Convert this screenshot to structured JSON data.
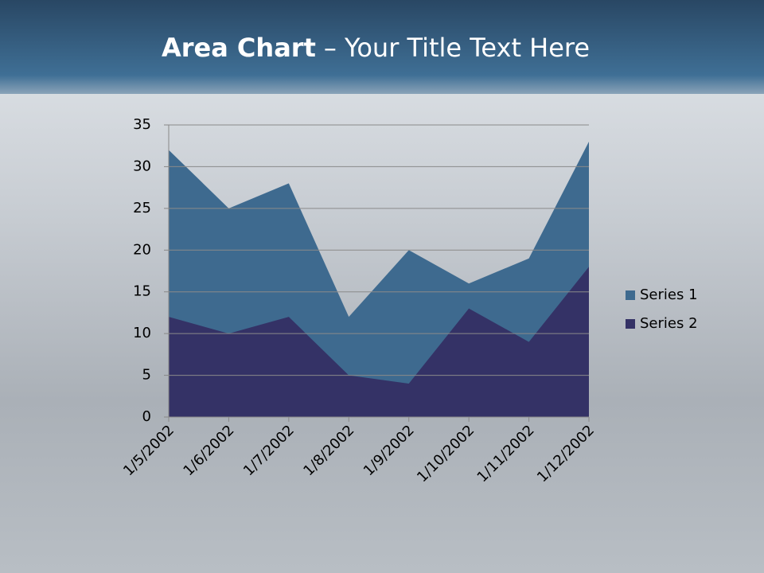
{
  "chart_data": {
    "type": "area",
    "title": [
      "Area Chart",
      "– Your Title Text Here"
    ],
    "categories": [
      "1/5/2002",
      "1/6/2002",
      "1/7/2002",
      "1/8/2002",
      "1/9/2002",
      "1/10/2002",
      "1/11/2002",
      "1/12/2002"
    ],
    "series": [
      {
        "name": "Series 1",
        "color": "#3e6a8f",
        "values": [
          32,
          25,
          28,
          12,
          20,
          16,
          19,
          33
        ]
      },
      {
        "name": "Series 2",
        "color": "#343266",
        "values": [
          12,
          10,
          12,
          5,
          4,
          13,
          9,
          18
        ]
      }
    ],
    "ylim": [
      0,
      35
    ],
    "yticks": [
      0,
      5,
      10,
      15,
      20,
      25,
      30,
      35
    ],
    "grid": true,
    "legend": "right"
  }
}
